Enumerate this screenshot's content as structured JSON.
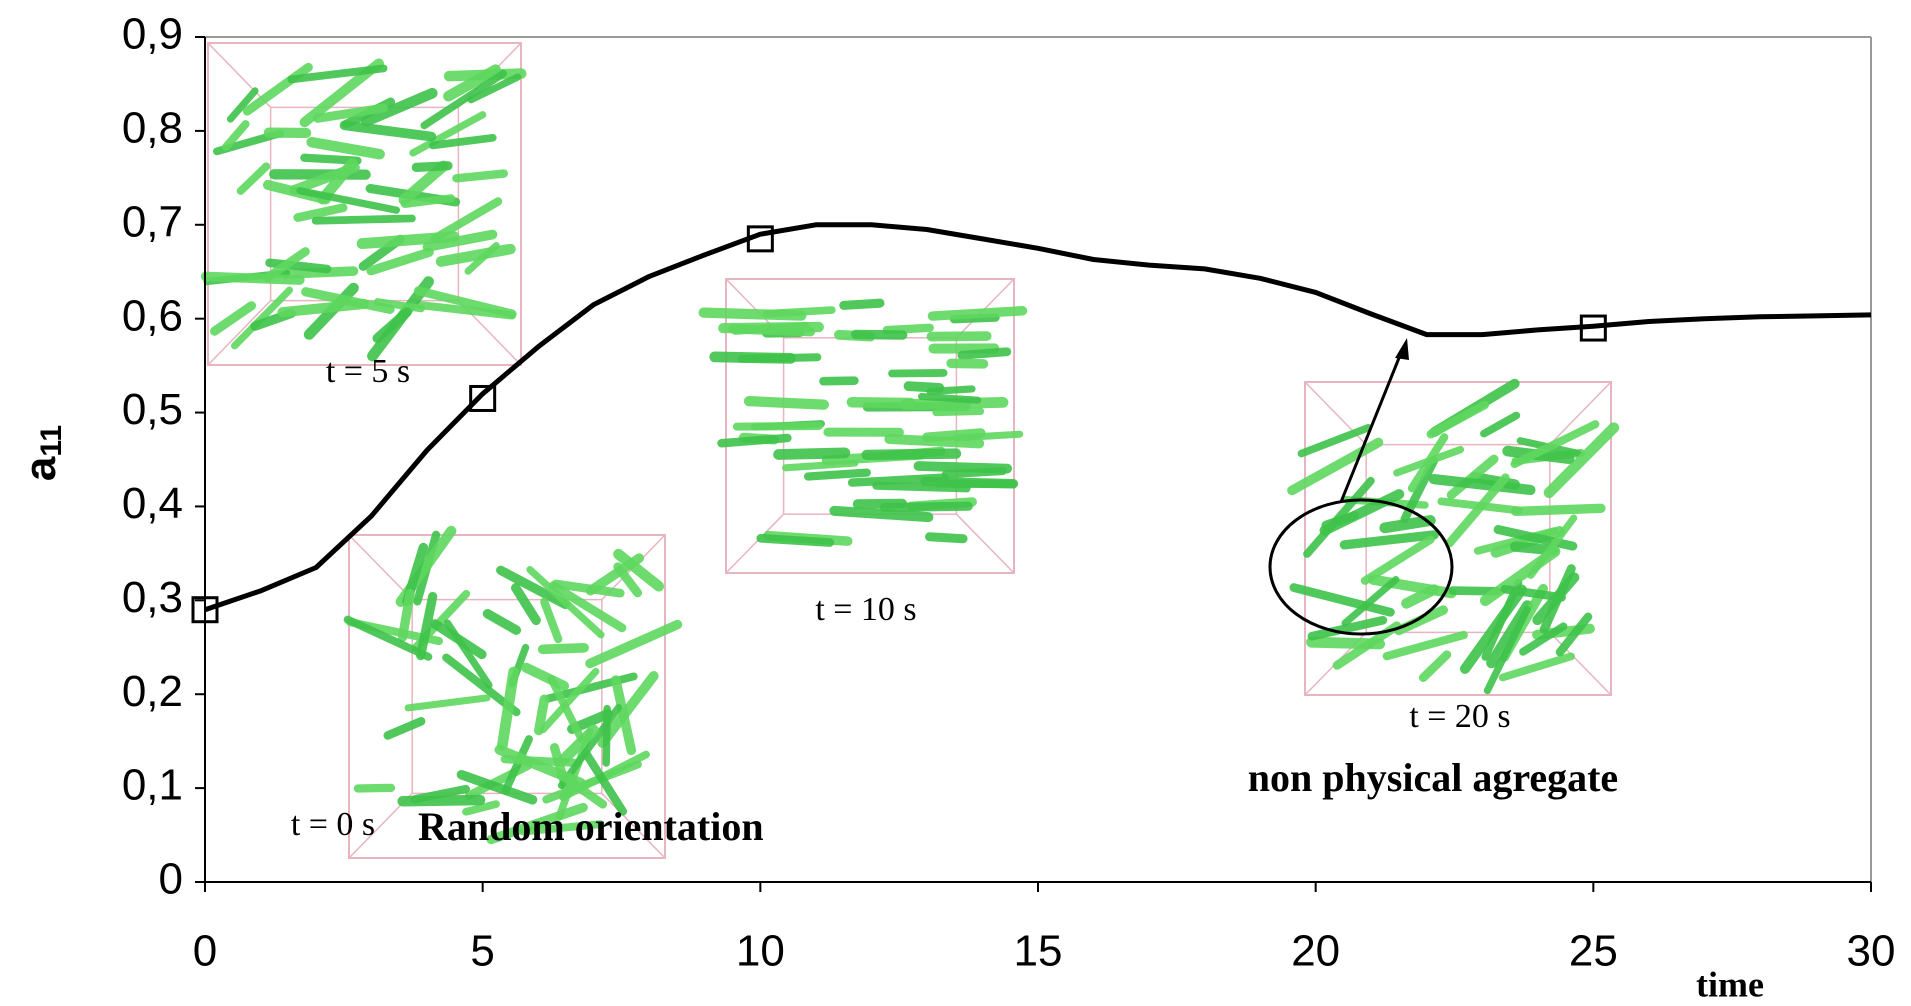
{
  "chart_data": {
    "type": "line",
    "ylabel": {
      "base": "a",
      "subscript": "11"
    },
    "xlabel": "time",
    "x": [
      0,
      1,
      2,
      3,
      4,
      5,
      6,
      7,
      8,
      9,
      10,
      11,
      12,
      13,
      14,
      15,
      16,
      17,
      18,
      19,
      20,
      21,
      22,
      23,
      24,
      25,
      26,
      27,
      28,
      29,
      30
    ],
    "values": [
      0.29,
      0.31,
      0.335,
      0.39,
      0.46,
      0.52,
      0.57,
      0.615,
      0.645,
      0.668,
      0.69,
      0.7,
      0.7,
      0.695,
      0.685,
      0.675,
      0.663,
      0.657,
      0.653,
      0.643,
      0.628,
      0.605,
      0.583,
      0.583,
      0.588,
      0.592,
      0.597,
      0.6,
      0.602,
      0.603,
      0.604
    ],
    "color": "#000000",
    "markers": {
      "x": [
        0,
        5,
        10,
        25
      ],
      "values": [
        0.29,
        0.515,
        0.685,
        0.59
      ]
    },
    "xlim": [
      0,
      30
    ],
    "xticks": [
      0,
      5,
      10,
      15,
      20,
      25,
      30
    ],
    "ylim": [
      0,
      0.9
    ],
    "yticks": [
      0,
      {
        "value": 0.1,
        "label": "0,1"
      },
      {
        "value": 0.2,
        "label": "0,2"
      },
      {
        "value": 0.3,
        "label": "0,3"
      },
      {
        "value": 0.4,
        "label": "0,4"
      },
      {
        "value": 0.5,
        "label": "0,5"
      },
      {
        "value": 0.6,
        "label": "0,6"
      },
      {
        "value": 0.7,
        "label": "0,7"
      },
      {
        "value": 0.8,
        "label": "0,8"
      },
      {
        "value": 0.9,
        "label": "0,9"
      }
    ],
    "annotations": [
      "t = 5 s",
      "t = 0 s",
      "t = 10 s",
      "t = 20 s",
      "Random orientation",
      "non physical agregate"
    ]
  }
}
